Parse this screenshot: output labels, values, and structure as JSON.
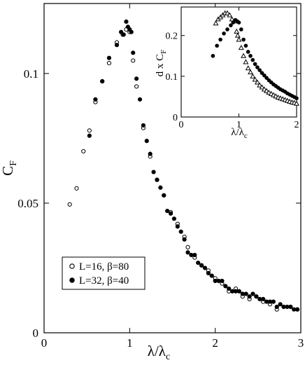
{
  "chart_data": [
    {
      "type": "scatter",
      "title": "",
      "xlabel": {
        "main": "λ/λ",
        "sub": "c"
      },
      "ylabel": {
        "main": "C",
        "sub": "F"
      },
      "xlim": [
        0,
        3
      ],
      "ylim": [
        0,
        0.127
      ],
      "x_ticks": [
        0,
        1,
        2,
        3
      ],
      "x_tick_labels": [
        "0",
        "1",
        "2",
        "3"
      ],
      "y_ticks": [
        0,
        0.05,
        0.1
      ],
      "y_tick_labels": [
        "0",
        "0.05",
        "0.1"
      ],
      "grid": false,
      "legend_position": "lower-left",
      "series": [
        {
          "name": "L=16, β=80",
          "marker": "open-circle",
          "points": [
            [
              0.3,
              0.0495
            ],
            [
              0.38,
              0.0557
            ],
            [
              0.46,
              0.07
            ],
            [
              0.53,
              0.078
            ],
            [
              0.6,
              0.089
            ],
            [
              0.68,
              0.097
            ],
            [
              0.76,
              0.104
            ],
            [
              0.85,
              0.112
            ],
            [
              0.92,
              0.115
            ],
            [
              0.96,
              0.117
            ],
            [
              1.0,
              0.116
            ],
            [
              1.04,
              0.105
            ],
            [
              1.08,
              0.095
            ],
            [
              1.16,
              0.079
            ],
            [
              1.24,
              0.068
            ],
            [
              1.32,
              0.059
            ],
            [
              1.4,
              0.053
            ],
            [
              1.48,
              0.0465
            ],
            [
              1.56,
              0.042
            ],
            [
              1.64,
              0.037
            ],
            [
              1.68,
              0.033
            ],
            [
              1.76,
              0.029
            ],
            [
              1.84,
              0.026
            ],
            [
              1.92,
              0.024
            ],
            [
              2.0,
              0.021
            ],
            [
              2.08,
              0.019
            ],
            [
              2.16,
              0.016
            ],
            [
              2.24,
              0.017
            ],
            [
              2.32,
              0.014
            ],
            [
              2.4,
              0.013
            ],
            [
              2.48,
              0.014
            ],
            [
              2.56,
              0.012
            ],
            [
              2.64,
              0.011
            ],
            [
              2.72,
              0.009
            ],
            [
              2.8,
              0.01
            ],
            [
              2.88,
              0.01
            ],
            [
              2.96,
              0.009
            ]
          ]
        },
        {
          "name": "L=32, β=40",
          "marker": "filled-circle",
          "points": [
            [
              0.53,
              0.076
            ],
            [
              0.6,
              0.09
            ],
            [
              0.68,
              0.097
            ],
            [
              0.76,
              0.106
            ],
            [
              0.85,
              0.111
            ],
            [
              0.9,
              0.116
            ],
            [
              0.93,
              0.115
            ],
            [
              0.96,
              0.12
            ],
            [
              0.98,
              0.118
            ],
            [
              1.0,
              0.117
            ],
            [
              1.02,
              0.116
            ],
            [
              1.04,
              0.108
            ],
            [
              1.08,
              0.098
            ],
            [
              1.12,
              0.09
            ],
            [
              1.16,
              0.08
            ],
            [
              1.2,
              0.074
            ],
            [
              1.24,
              0.069
            ],
            [
              1.28,
              0.062
            ],
            [
              1.32,
              0.059
            ],
            [
              1.36,
              0.056
            ],
            [
              1.4,
              0.053
            ],
            [
              1.44,
              0.047
            ],
            [
              1.48,
              0.046
            ],
            [
              1.52,
              0.044
            ],
            [
              1.56,
              0.041
            ],
            [
              1.6,
              0.039
            ],
            [
              1.64,
              0.036
            ],
            [
              1.68,
              0.031
            ],
            [
              1.72,
              0.03
            ],
            [
              1.76,
              0.03
            ],
            [
              1.8,
              0.027
            ],
            [
              1.84,
              0.026
            ],
            [
              1.88,
              0.025
            ],
            [
              1.92,
              0.023
            ],
            [
              1.96,
              0.022
            ],
            [
              2.0,
              0.02
            ],
            [
              2.04,
              0.02
            ],
            [
              2.08,
              0.02
            ],
            [
              2.12,
              0.018
            ],
            [
              2.16,
              0.017
            ],
            [
              2.2,
              0.016
            ],
            [
              2.24,
              0.016
            ],
            [
              2.28,
              0.016
            ],
            [
              2.32,
              0.015
            ],
            [
              2.36,
              0.015
            ],
            [
              2.4,
              0.014
            ],
            [
              2.44,
              0.015
            ],
            [
              2.48,
              0.014
            ],
            [
              2.52,
              0.013
            ],
            [
              2.56,
              0.013
            ],
            [
              2.6,
              0.012
            ],
            [
              2.64,
              0.012
            ],
            [
              2.68,
              0.012
            ],
            [
              2.72,
              0.01
            ],
            [
              2.76,
              0.011
            ],
            [
              2.8,
              0.01
            ],
            [
              2.84,
              0.01
            ],
            [
              2.88,
              0.01
            ],
            [
              2.92,
              0.009
            ],
            [
              2.96,
              0.009
            ]
          ]
        }
      ]
    },
    {
      "type": "scatter",
      "title": "",
      "xlabel": {
        "main": "λ/λ",
        "sub": "c"
      },
      "ylabel": {
        "main": "d x C",
        "sub": "F"
      },
      "xlim": [
        0,
        2
      ],
      "ylim": [
        0,
        0.27
      ],
      "x_ticks": [
        0,
        1,
        2
      ],
      "x_tick_labels": [
        "0",
        "1",
        "2"
      ],
      "y_ticks": [
        0,
        0.1,
        0.2
      ],
      "y_tick_labels": [
        "0",
        "0.1",
        "0.2"
      ],
      "grid": false,
      "legend_position": "none",
      "series": [
        {
          "marker": "open-triangle",
          "points": [
            [
              0.6,
              0.23
            ],
            [
              0.64,
              0.24
            ],
            [
              0.68,
              0.245
            ],
            [
              0.72,
              0.25
            ],
            [
              0.76,
              0.255
            ],
            [
              0.8,
              0.255
            ],
            [
              0.84,
              0.25
            ],
            [
              0.88,
              0.24
            ],
            [
              0.92,
              0.235
            ],
            [
              0.96,
              0.21
            ],
            [
              0.98,
              0.2
            ],
            [
              1.0,
              0.19
            ],
            [
              1.04,
              0.17
            ],
            [
              1.08,
              0.15
            ],
            [
              1.12,
              0.135
            ],
            [
              1.16,
              0.12
            ],
            [
              1.2,
              0.11
            ],
            [
              1.24,
              0.1
            ],
            [
              1.28,
              0.092
            ],
            [
              1.32,
              0.085
            ],
            [
              1.36,
              0.078
            ],
            [
              1.4,
              0.073
            ],
            [
              1.44,
              0.068
            ],
            [
              1.48,
              0.064
            ],
            [
              1.52,
              0.06
            ],
            [
              1.56,
              0.057
            ],
            [
              1.6,
              0.054
            ],
            [
              1.64,
              0.051
            ],
            [
              1.68,
              0.048
            ],
            [
              1.72,
              0.046
            ],
            [
              1.76,
              0.044
            ],
            [
              1.8,
              0.042
            ],
            [
              1.84,
              0.04
            ],
            [
              1.88,
              0.038
            ],
            [
              1.92,
              0.036
            ],
            [
              1.96,
              0.035
            ],
            [
              2.0,
              0.033
            ]
          ]
        },
        {
          "marker": "filled-circle",
          "points": [
            [
              0.55,
              0.15
            ],
            [
              0.62,
              0.175
            ],
            [
              0.68,
              0.19
            ],
            [
              0.74,
              0.205
            ],
            [
              0.8,
              0.215
            ],
            [
              0.86,
              0.225
            ],
            [
              0.9,
              0.232
            ],
            [
              0.94,
              0.238
            ],
            [
              0.97,
              0.235
            ],
            [
              1.0,
              0.232
            ],
            [
              1.04,
              0.215
            ],
            [
              1.08,
              0.19
            ],
            [
              1.12,
              0.175
            ],
            [
              1.16,
              0.16
            ],
            [
              1.2,
              0.15
            ],
            [
              1.24,
              0.14
            ],
            [
              1.28,
              0.13
            ],
            [
              1.32,
              0.122
            ],
            [
              1.36,
              0.115
            ],
            [
              1.4,
              0.108
            ],
            [
              1.44,
              0.102
            ],
            [
              1.48,
              0.096
            ],
            [
              1.52,
              0.09
            ],
            [
              1.56,
              0.085
            ],
            [
              1.6,
              0.08
            ],
            [
              1.64,
              0.076
            ],
            [
              1.68,
              0.072
            ],
            [
              1.72,
              0.068
            ],
            [
              1.76,
              0.065
            ],
            [
              1.8,
              0.062
            ],
            [
              1.84,
              0.058
            ],
            [
              1.88,
              0.055
            ],
            [
              1.92,
              0.052
            ],
            [
              1.96,
              0.049
            ],
            [
              2.0,
              0.046
            ]
          ]
        }
      ]
    }
  ]
}
